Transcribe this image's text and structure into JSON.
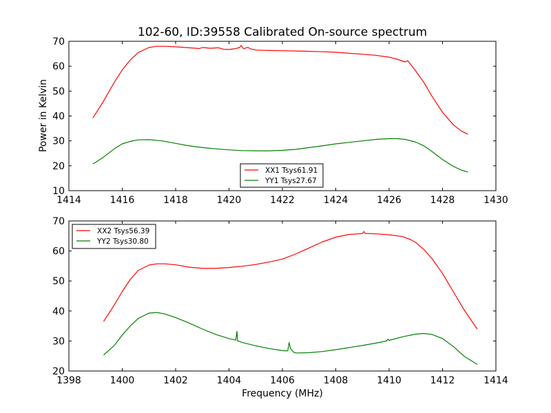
{
  "chart_data": [
    {
      "type": "line",
      "title": "102-60, ID:39558 Calibrated On-source spectrum",
      "ylabel": "Power in Kelvin",
      "xlabel": "",
      "xlim": [
        1414,
        1430
      ],
      "ylim": [
        10,
        70
      ],
      "xticks": [
        "1414",
        "1416",
        "1418",
        "1420",
        "1422",
        "1424",
        "1426",
        "1428",
        "1430"
      ],
      "yticks": [
        "10",
        "20",
        "30",
        "40",
        "50",
        "60",
        "70"
      ],
      "grid": false,
      "legend": "bottom-center",
      "series": [
        {
          "name": "XX1 Tsys61.91",
          "color": "#ff0000",
          "x": [
            1414.9,
            1415.3,
            1415.7,
            1416.0,
            1416.3,
            1416.6,
            1417.0,
            1417.3,
            1417.6,
            1418.0,
            1418.5,
            1418.9,
            1419.0,
            1419.3,
            1419.6,
            1419.8,
            1420.0,
            1420.2,
            1420.4,
            1420.45,
            1420.55,
            1420.7,
            1420.8,
            1421.0,
            1421.5,
            1422.0,
            1422.5,
            1423.0,
            1423.5,
            1424.0,
            1424.5,
            1425.0,
            1425.5,
            1426.0,
            1426.3,
            1426.6,
            1426.7,
            1426.8,
            1427.0,
            1427.3,
            1427.6,
            1428.0,
            1428.4,
            1428.7,
            1428.95
          ],
          "y": [
            39.2,
            46.0,
            53.5,
            58.5,
            62.5,
            65.5,
            67.5,
            68.0,
            68.0,
            67.8,
            67.4,
            67.1,
            67.5,
            67.2,
            67.4,
            66.8,
            66.7,
            67.0,
            67.5,
            68.3,
            67.0,
            67.6,
            67.0,
            66.5,
            66.3,
            66.2,
            66.1,
            66.0,
            65.8,
            65.6,
            65.2,
            64.8,
            64.4,
            63.6,
            62.8,
            61.7,
            62.2,
            60.8,
            58.0,
            53.5,
            48.0,
            41.5,
            36.5,
            34.0,
            32.7
          ]
        },
        {
          "name": "YY1 Tsys27.67",
          "color": "#008000",
          "x": [
            1414.9,
            1415.3,
            1415.7,
            1416.0,
            1416.3,
            1416.6,
            1417.0,
            1417.5,
            1418.0,
            1418.5,
            1419.0,
            1419.5,
            1420.0,
            1420.5,
            1421.0,
            1421.5,
            1422.0,
            1422.5,
            1423.0,
            1423.5,
            1424.0,
            1424.5,
            1425.0,
            1425.5,
            1426.0,
            1426.3,
            1426.6,
            1427.0,
            1427.3,
            1427.6,
            1428.0,
            1428.4,
            1428.7,
            1428.95
          ],
          "y": [
            20.7,
            23.5,
            26.8,
            28.8,
            29.8,
            30.4,
            30.5,
            30.0,
            29.0,
            28.0,
            27.3,
            26.8,
            26.4,
            26.1,
            26.0,
            26.0,
            26.2,
            26.6,
            27.3,
            28.0,
            28.8,
            29.4,
            30.0,
            30.6,
            30.9,
            30.9,
            30.6,
            29.5,
            28.0,
            25.8,
            22.5,
            19.8,
            18.3,
            17.5
          ]
        }
      ]
    },
    {
      "type": "line",
      "title": "",
      "ylabel": "",
      "xlabel": "Frequency (MHz)",
      "xlim": [
        1398,
        1414
      ],
      "ylim": [
        20,
        70
      ],
      "xticks": [
        "1398",
        "1400",
        "1402",
        "1404",
        "1406",
        "1408",
        "1410",
        "1412",
        "1414"
      ],
      "yticks": [
        "20",
        "30",
        "40",
        "50",
        "60",
        "70"
      ],
      "grid": false,
      "legend": "top-left",
      "series": [
        {
          "name": "XX2 Tsys56.39",
          "color": "#ff0000",
          "x": [
            1399.3,
            1399.7,
            1400.0,
            1400.3,
            1400.6,
            1401.0,
            1401.3,
            1401.6,
            1402.0,
            1402.5,
            1403.0,
            1403.5,
            1404.0,
            1404.5,
            1405.0,
            1405.5,
            1406.0,
            1406.5,
            1407.0,
            1407.5,
            1408.0,
            1408.5,
            1409.0,
            1409.05,
            1409.1,
            1409.2,
            1409.5,
            1410.0,
            1410.5,
            1410.8,
            1411.0,
            1411.3,
            1411.6,
            1412.0,
            1412.4,
            1412.8,
            1413.3
          ],
          "y": [
            36.5,
            42.0,
            46.5,
            50.5,
            53.5,
            55.3,
            55.7,
            55.7,
            55.4,
            54.6,
            54.2,
            54.2,
            54.5,
            54.9,
            55.5,
            56.3,
            57.3,
            59.0,
            61.0,
            63.0,
            64.6,
            65.5,
            65.8,
            66.5,
            65.8,
            65.8,
            65.7,
            65.4,
            64.8,
            63.8,
            62.8,
            60.5,
            57.5,
            52.5,
            46.5,
            40.5,
            34.0
          ]
        },
        {
          "name": "YY2 Tsys30.80",
          "color": "#008000",
          "x": [
            1399.3,
            1399.7,
            1400.0,
            1400.3,
            1400.6,
            1401.0,
            1401.3,
            1401.6,
            1402.0,
            1402.5,
            1403.0,
            1403.5,
            1404.0,
            1404.25,
            1404.3,
            1404.32,
            1404.35,
            1404.5,
            1405.0,
            1405.5,
            1406.0,
            1406.2,
            1406.25,
            1406.3,
            1406.4,
            1406.5,
            1407.0,
            1407.5,
            1408.0,
            1408.5,
            1409.0,
            1409.5,
            1409.9,
            1409.95,
            1410.0,
            1410.5,
            1411.0,
            1411.3,
            1411.6,
            1412.0,
            1412.4,
            1412.8,
            1413.3
          ],
          "y": [
            25.3,
            28.5,
            32.0,
            35.0,
            37.5,
            39.3,
            39.5,
            39.0,
            37.8,
            36.0,
            34.0,
            32.2,
            30.8,
            30.3,
            33.2,
            30.0,
            30.0,
            29.5,
            28.4,
            27.5,
            26.8,
            26.7,
            29.5,
            27.6,
            26.4,
            26.0,
            26.1,
            26.5,
            27.1,
            27.8,
            28.5,
            29.3,
            30.0,
            30.6,
            30.2,
            31.4,
            32.3,
            32.5,
            32.2,
            30.8,
            28.2,
            25.0,
            22.2
          ]
        }
      ]
    }
  ]
}
